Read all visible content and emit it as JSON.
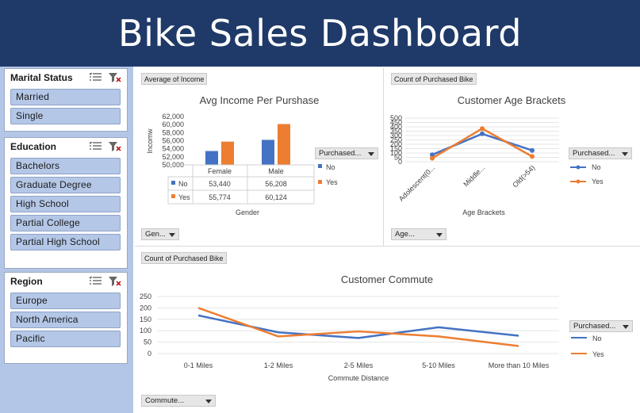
{
  "header": {
    "title": "Bike Sales Dashboard"
  },
  "colors": {
    "header_bg": "#1f3a68",
    "sidebar_bg": "#b3c6e7",
    "no": "#4472c4",
    "yes": "#ed7d31"
  },
  "slicers": [
    {
      "title": "Marital Status",
      "items": [
        "Married",
        "Single"
      ]
    },
    {
      "title": "Education",
      "items": [
        "Bachelors",
        "Graduate Degree",
        "High School",
        "Partial College",
        "Partial High School"
      ]
    },
    {
      "title": "Region",
      "items": [
        "Europe",
        "North America",
        "Pacific"
      ]
    }
  ],
  "income_panel": {
    "field_tag": "Average of Income",
    "filter_label": "Gen...",
    "legend_title": "Purchased...",
    "table_rows": [
      {
        "label": "No",
        "values": [
          "53,440",
          "56,208"
        ]
      },
      {
        "label": "Yes",
        "values": [
          "55,774",
          "60,124"
        ]
      }
    ]
  },
  "age_panel": {
    "field_tag": "Count of Purchased Bike",
    "filter_label": "Age...",
    "legend_title": "Purchased..."
  },
  "commute_panel": {
    "field_tag": "Count of Purchased Bike",
    "filter_label": "Commute...",
    "legend_title": "Purchased..."
  },
  "chart_data": [
    {
      "type": "bar",
      "title": "Avg Income Per Purshase",
      "xlabel": "Gender",
      "ylabel": "Incomw",
      "categories": [
        "Female",
        "Male"
      ],
      "series": [
        {
          "name": "No",
          "values": [
            53440,
            56208
          ]
        },
        {
          "name": "Yes",
          "values": [
            55774,
            60124
          ]
        }
      ],
      "ylim": [
        50000,
        62000
      ],
      "yticks": [
        "50,000",
        "52,000",
        "54,000",
        "56,000",
        "58,000",
        "60,000",
        "62,000"
      ],
      "legend": "right"
    },
    {
      "type": "line",
      "title": "Customer Age Brackets",
      "xlabel": "Age Brackets",
      "ylabel": "",
      "categories": [
        "Adolescent(0...",
        "Middle...",
        "Old(>54)"
      ],
      "series": [
        {
          "name": "No",
          "values": [
            80,
            320,
            130
          ]
        },
        {
          "name": "Yes",
          "values": [
            40,
            380,
            60
          ]
        }
      ],
      "ylim": [
        0,
        500
      ],
      "yticks": [
        "0",
        "50",
        "100",
        "150",
        "200",
        "250",
        "300",
        "350",
        "400",
        "450",
        "500"
      ],
      "legend": "right"
    },
    {
      "type": "line",
      "title": "Customer Commute",
      "xlabel": "Commute Distance",
      "ylabel": "",
      "categories": [
        "0-1 Miles",
        "1-2 Miles",
        "2-5 Miles",
        "5-10 Miles",
        "More than 10 Miles"
      ],
      "series": [
        {
          "name": "No",
          "values": [
            167,
            93,
            68,
            115,
            78
          ]
        },
        {
          "name": "Yes",
          "values": [
            200,
            75,
            97,
            75,
            33
          ]
        }
      ],
      "ylim": [
        0,
        250
      ],
      "yticks": [
        "0",
        "50",
        "100",
        "150",
        "200",
        "250"
      ],
      "legend": "right"
    }
  ]
}
